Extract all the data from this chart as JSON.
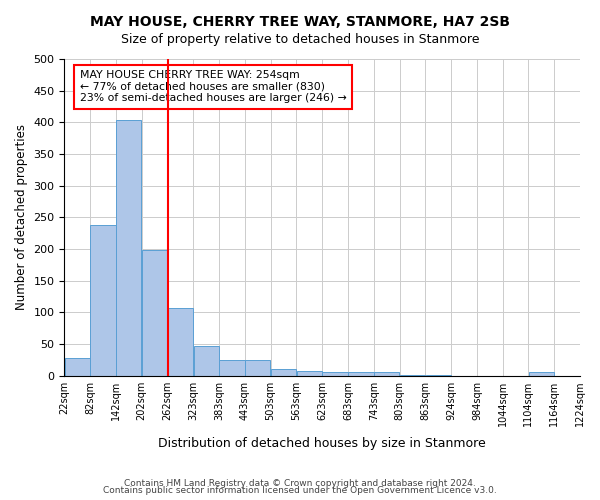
{
  "title": "MAY HOUSE, CHERRY TREE WAY, STANMORE, HA7 2SB",
  "subtitle": "Size of property relative to detached houses in Stanmore",
  "xlabel": "Distribution of detached houses by size in Stanmore",
  "ylabel": "Number of detached properties",
  "bar_color": "#aec6e8",
  "bar_edge_color": "#5a9fd4",
  "tick_labels": [
    "22sqm",
    "82sqm",
    "142sqm",
    "202sqm",
    "262sqm",
    "323sqm",
    "383sqm",
    "443sqm",
    "503sqm",
    "563sqm",
    "623sqm",
    "683sqm",
    "743sqm",
    "803sqm",
    "863sqm",
    "924sqm",
    "984sqm",
    "1044sqm",
    "1104sqm",
    "1164sqm",
    "1224sqm"
  ],
  "values": [
    27,
    237,
    403,
    199,
    106,
    47,
    24,
    24,
    10,
    7,
    6,
    6,
    5,
    1,
    1,
    0,
    0,
    0,
    5,
    0
  ],
  "vline_x": 3.5,
  "annotation_text": "MAY HOUSE CHERRY TREE WAY: 254sqm\n← 77% of detached houses are smaller (830)\n23% of semi-detached houses are larger (246) →",
  "annotation_box_color": "white",
  "annotation_box_edge": "red",
  "vline_color": "red",
  "footer1": "Contains HM Land Registry data © Crown copyright and database right 2024.",
  "footer2": "Contains public sector information licensed under the Open Government Licence v3.0.",
  "ylim": [
    0,
    500
  ],
  "yticks": [
    0,
    50,
    100,
    150,
    200,
    250,
    300,
    350,
    400,
    450,
    500
  ]
}
